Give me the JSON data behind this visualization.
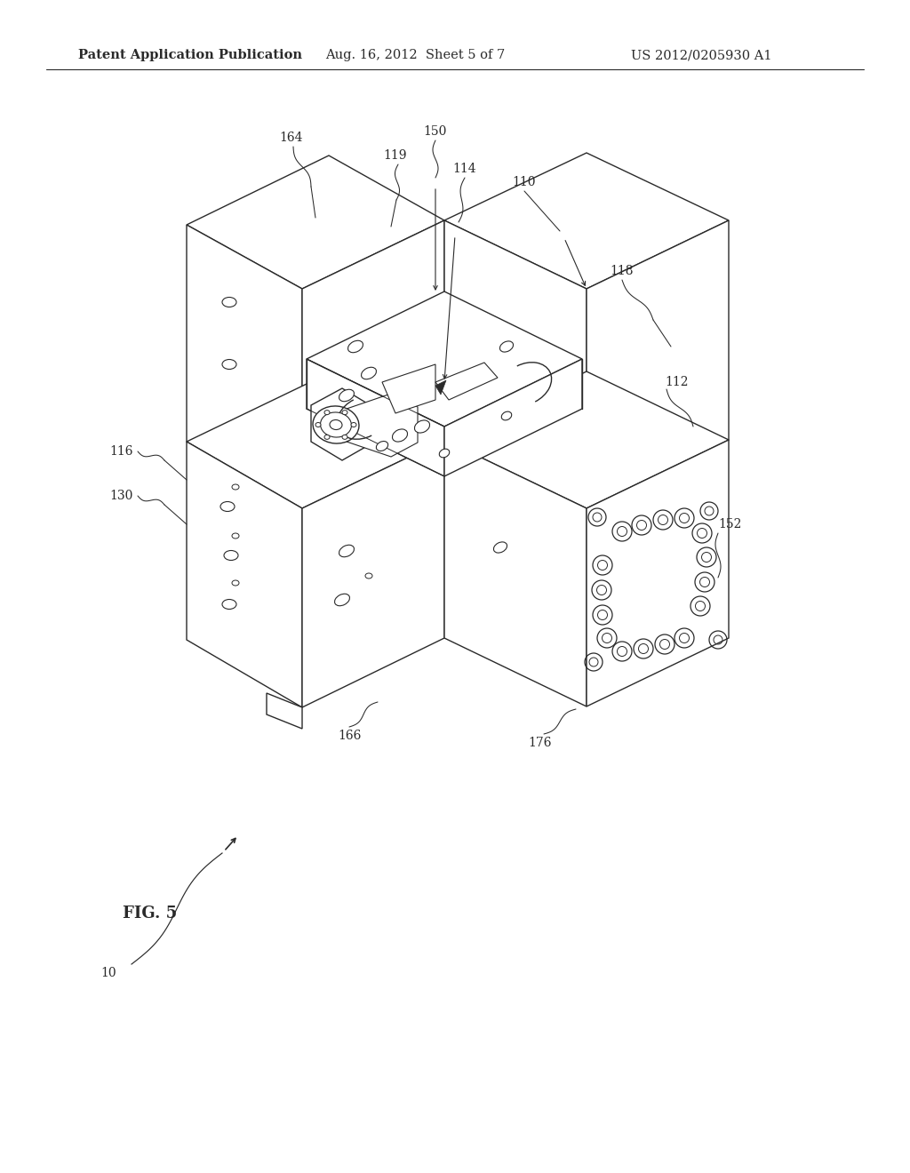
{
  "title_left": "Patent Application Publication",
  "title_center": "Aug. 16, 2012  Sheet 5 of 7",
  "title_right": "US 2012/0205930 A1",
  "fig_label": "FIG. 5",
  "fig_number": "10",
  "background_color": "#ffffff",
  "line_color": "#2a2a2a",
  "header_fontsize": 10.5,
  "label_fontsize": 10,
  "fig_label_fontsize": 13,
  "lw_main": 1.0,
  "lw_thin": 0.7
}
